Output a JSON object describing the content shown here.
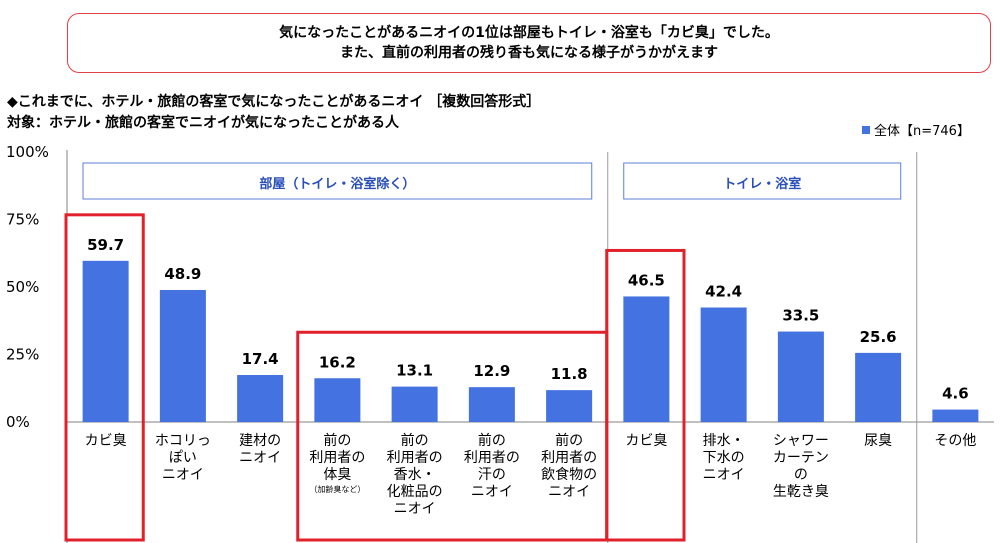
{
  "summary": {
    "line1": "気になったことがあるニオイの1位は部屋もトイレ・浴室も「カビ臭」でした。",
    "line2": "また、直前の利用者の残り香も気になる様子がうかがえます"
  },
  "chart_data": {
    "type": "bar",
    "title": "◆これまでに、ホテル・旅館の客室で気になったことがあるニオイ ［複数回答形式］",
    "subtitle": "対象：ホテル・旅館の客室でニオイが気になったことがある人",
    "legend": "全体【n=746】",
    "legend_position": "top-right",
    "ylim": [
      0,
      100
    ],
    "yticks": [
      "0%",
      "25%",
      "50%",
      "75%",
      "100%"
    ],
    "ytick_values": [
      0,
      25,
      50,
      75,
      100
    ],
    "categories": [
      {
        "label": "カビ臭",
        "note": ""
      },
      {
        "label": "ホコリっ\nぽい\nニオイ",
        "note": ""
      },
      {
        "label": "建材の\nニオイ",
        "note": ""
      },
      {
        "label": "前の\n利用者の\n体臭",
        "note": "（加齢臭など）"
      },
      {
        "label": "前の\n利用者の\n香水・\n化粧品の\nニオイ",
        "note": ""
      },
      {
        "label": "前の\n利用者の\n汗の\nニオイ",
        "note": ""
      },
      {
        "label": "前の\n利用者の\n飲食物の\nニオイ",
        "note": ""
      },
      {
        "label": "カビ臭",
        "note": ""
      },
      {
        "label": "排水・\n下水の\nニオイ",
        "note": ""
      },
      {
        "label": "シャワー\nカーテン\nの\n生乾き臭",
        "note": ""
      },
      {
        "label": "尿臭",
        "note": ""
      },
      {
        "label": "その他",
        "note": ""
      }
    ],
    "values": [
      59.7,
      48.9,
      17.4,
      16.2,
      13.1,
      12.9,
      11.8,
      46.5,
      42.4,
      33.5,
      25.6,
      4.6
    ],
    "value_labels": [
      "59.7",
      "48.9",
      "17.4",
      "16.2",
      "13.1",
      "12.9",
      "11.8",
      "46.5",
      "42.4",
      "33.5",
      "25.6",
      "4.6"
    ],
    "groups": [
      {
        "label": "部屋（トイレ・浴室除く）",
        "start": 0,
        "end": 6
      },
      {
        "label": "トイレ・浴室",
        "start": 7,
        "end": 10
      }
    ],
    "highlights": [
      [
        0,
        0
      ],
      [
        3,
        6
      ],
      [
        7,
        7
      ]
    ],
    "colors": {
      "bar": "#4472e0",
      "highlight": "#e0202a",
      "group_border": "#5b7fd6",
      "group_text": "#2a4fb8"
    }
  }
}
